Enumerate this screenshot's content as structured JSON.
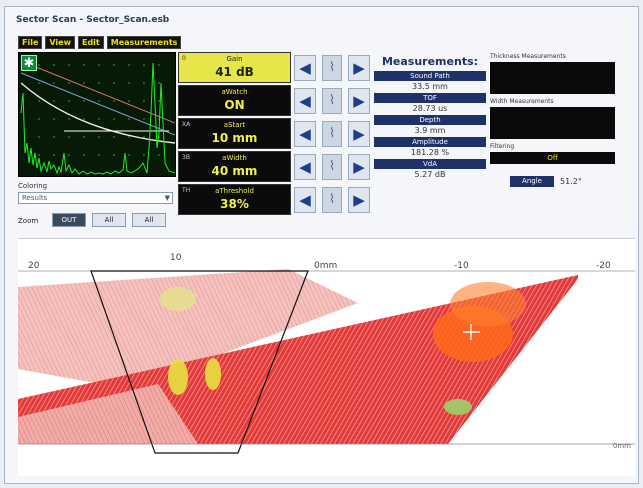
{
  "window": {
    "title": "Sector Scan - Sector_Scan.esb"
  },
  "menu": [
    "File",
    "View",
    "Edit",
    "Measurements"
  ],
  "ascan": {
    "icon": "asterisk-icon"
  },
  "selector": {
    "label": "Coloring",
    "value": "Results"
  },
  "zoom": {
    "label": "Zoom",
    "buttons": [
      "OUT",
      "All",
      "All"
    ]
  },
  "params": [
    {
      "code": "0",
      "name": "Gain",
      "value": "41 dB"
    },
    {
      "code": "",
      "name": "aWatch",
      "value": "ON"
    },
    {
      "code": "XA",
      "name": "aStart",
      "value": "10 mm"
    },
    {
      "code": "3B",
      "name": "aWidth",
      "value": "40 mm"
    },
    {
      "code": "TH",
      "name": "aThreshold",
      "value": "38%"
    }
  ],
  "measurements": {
    "title": "Measurements:",
    "items": [
      {
        "label": "Sound Path",
        "value": "33.5 mm"
      },
      {
        "label": "TOF",
        "value": "28.73 us"
      },
      {
        "label": "Depth",
        "value": "3.9 mm"
      },
      {
        "label": "Amplitude",
        "value": "181.28 %"
      },
      {
        "label": "VdA",
        "value": "5.27 dB"
      }
    ]
  },
  "right_panel": {
    "thickness_label": "Thickness Measurements",
    "width_label": "Width Measurements",
    "filtering_label": "Filtering",
    "filtering_value": "Off",
    "angle_label": "Angle",
    "angle_value": "51.2°"
  },
  "sscan": {
    "scale": [
      "20",
      "10",
      "0mm",
      "-10",
      "-20"
    ],
    "unit": "0mm"
  }
}
